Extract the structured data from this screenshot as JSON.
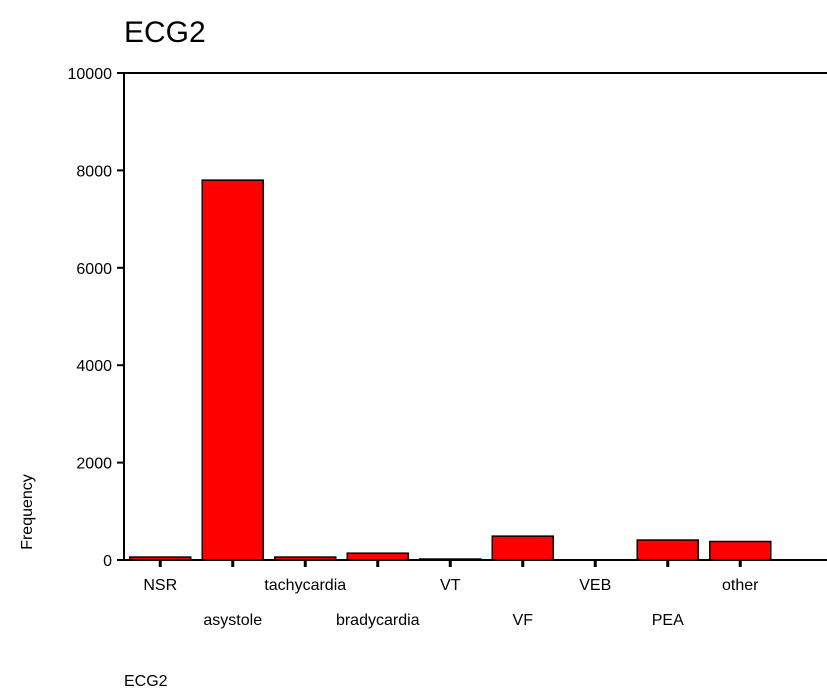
{
  "chart_data": {
    "type": "bar",
    "title": "ECG2",
    "xlabel": "ECG2",
    "ylabel": "Frequency",
    "categories": [
      "NSR",
      "asystole",
      "tachycardia",
      "bradycardia",
      "VT",
      "VF",
      "VEB",
      "PEA",
      "other"
    ],
    "values": [
      60,
      7800,
      60,
      140,
      20,
      490,
      0,
      410,
      380
    ],
    "ylim": [
      0,
      10000
    ],
    "yticks": [
      0,
      2000,
      4000,
      6000,
      8000,
      10000
    ],
    "grid": false,
    "legend": "none",
    "bar_color": "#ff0000"
  }
}
